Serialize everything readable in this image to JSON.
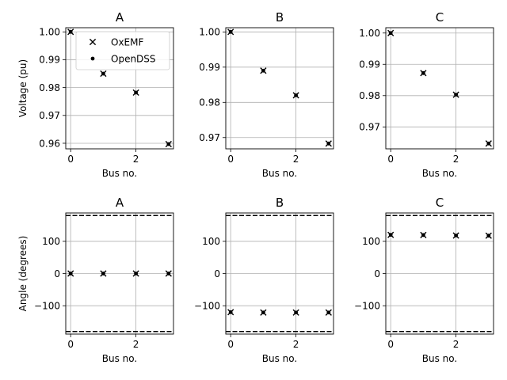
{
  "chart_data": [
    {
      "type": "scatter",
      "title": "A",
      "xlabel": "Bus no.",
      "ylabel": "Voltage (pu)",
      "xlim": [
        -0.15,
        3.15
      ],
      "ylim": [
        0.958,
        1.0015
      ],
      "xticks": [
        0,
        2
      ],
      "yticks": [
        0.96,
        0.97,
        0.98,
        0.99,
        1.0
      ],
      "ytick_labels": [
        "0.96",
        "0.97",
        "0.98",
        "0.99",
        "1.00"
      ],
      "grid": true,
      "legend": {
        "placement": "top-right",
        "entries": [
          "OxEMF",
          "OpenDSS"
        ]
      },
      "series": [
        {
          "name": "OxEMF",
          "marker": "x",
          "x": [
            0,
            1,
            2,
            3
          ],
          "y": [
            1.0,
            0.985,
            0.9782,
            0.9597
          ]
        },
        {
          "name": "OpenDSS",
          "marker": "dot",
          "x": [
            0,
            1,
            2,
            3
          ],
          "y": [
            1.0,
            0.985,
            0.9782,
            0.9597
          ]
        }
      ]
    },
    {
      "type": "scatter",
      "title": "B",
      "xlabel": "Bus no.",
      "ylabel": "",
      "xlim": [
        -0.15,
        3.15
      ],
      "ylim": [
        0.9668,
        1.0012
      ],
      "xticks": [
        0,
        2
      ],
      "yticks": [
        0.97,
        0.98,
        0.99,
        1.0
      ],
      "ytick_labels": [
        "0.97",
        "0.98",
        "0.99",
        "1.00"
      ],
      "grid": true,
      "series": [
        {
          "name": "OxEMF",
          "marker": "x",
          "x": [
            0,
            1,
            2,
            3
          ],
          "y": [
            1.0,
            0.989,
            0.982,
            0.9683
          ]
        },
        {
          "name": "OpenDSS",
          "marker": "dot",
          "x": [
            0,
            1,
            2,
            3
          ],
          "y": [
            1.0,
            0.989,
            0.982,
            0.9683
          ]
        }
      ]
    },
    {
      "type": "scatter",
      "title": "C",
      "xlabel": "Bus no.",
      "ylabel": "",
      "xlim": [
        -0.15,
        3.15
      ],
      "ylim": [
        0.963,
        1.0017
      ],
      "xticks": [
        0,
        2
      ],
      "yticks": [
        0.97,
        0.98,
        0.99,
        1.0
      ],
      "ytick_labels": [
        "0.97",
        "0.98",
        "0.99",
        "1.00"
      ],
      "grid": true,
      "series": [
        {
          "name": "OxEMF",
          "marker": "x",
          "x": [
            0,
            1,
            2,
            3
          ],
          "y": [
            1.0,
            0.9872,
            0.9803,
            0.9647
          ]
        },
        {
          "name": "OpenDSS",
          "marker": "dot",
          "x": [
            0,
            1,
            2,
            3
          ],
          "y": [
            1.0,
            0.9872,
            0.9803,
            0.9647
          ]
        }
      ]
    },
    {
      "type": "scatter",
      "title": "A",
      "xlabel": "Bus no.",
      "ylabel": "Angle (degrees)",
      "xlim": [
        -0.15,
        3.15
      ],
      "ylim": [
        -188,
        188
      ],
      "xticks": [
        0,
        2
      ],
      "yticks": [
        -100,
        0,
        100
      ],
      "ytick_labels": [
        "−100",
        "0",
        "100"
      ],
      "grid": true,
      "reference_lines": [
        180,
        -180
      ],
      "series": [
        {
          "name": "OxEMF",
          "marker": "x",
          "x": [
            0,
            1,
            2,
            3
          ],
          "y": [
            0,
            0,
            0,
            0
          ]
        },
        {
          "name": "OpenDSS",
          "marker": "dot",
          "x": [
            0,
            1,
            2,
            3
          ],
          "y": [
            0,
            0,
            0,
            0
          ]
        }
      ]
    },
    {
      "type": "scatter",
      "title": "B",
      "xlabel": "Bus no.",
      "ylabel": "",
      "xlim": [
        -0.15,
        3.15
      ],
      "ylim": [
        -188,
        188
      ],
      "xticks": [
        0,
        2
      ],
      "yticks": [
        -100,
        0,
        100
      ],
      "ytick_labels": [
        "−100",
        "0",
        "100"
      ],
      "grid": true,
      "reference_lines": [
        180,
        -180
      ],
      "series": [
        {
          "name": "OxEMF",
          "marker": "x",
          "x": [
            0,
            1,
            2,
            3
          ],
          "y": [
            -120,
            -121,
            -121,
            -121
          ]
        },
        {
          "name": "OpenDSS",
          "marker": "dot",
          "x": [
            0,
            1,
            2,
            3
          ],
          "y": [
            -120,
            -121,
            -121,
            -121
          ]
        }
      ]
    },
    {
      "type": "scatter",
      "title": "C",
      "xlabel": "Bus no.",
      "ylabel": "",
      "xlim": [
        -0.15,
        3.15
      ],
      "ylim": [
        -188,
        188
      ],
      "xticks": [
        0,
        2
      ],
      "yticks": [
        -100,
        0,
        100
      ],
      "ytick_labels": [
        "−100",
        "0",
        "100"
      ],
      "grid": true,
      "reference_lines": [
        180,
        -180
      ],
      "series": [
        {
          "name": "OxEMF",
          "marker": "x",
          "x": [
            0,
            1,
            2,
            3
          ],
          "y": [
            120,
            119.5,
            118,
            117.5
          ]
        },
        {
          "name": "OpenDSS",
          "marker": "dot",
          "x": [
            0,
            1,
            2,
            3
          ],
          "y": [
            120,
            119.5,
            118,
            117.5
          ]
        }
      ]
    }
  ]
}
